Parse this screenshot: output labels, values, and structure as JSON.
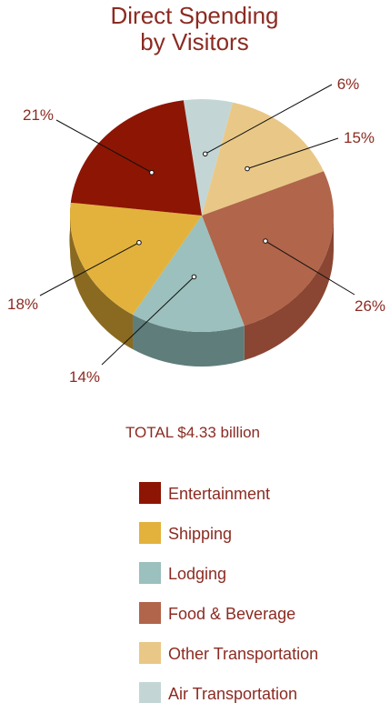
{
  "chart_data": {
    "type": "pie",
    "title_lines": [
      "Direct Spending",
      "by Visitors"
    ],
    "total_label": "TOTAL $4.33 billion",
    "slices": [
      {
        "name": "Air Transportation",
        "value": 6,
        "label": "6%",
        "color": "#c3d6d5",
        "side_color": "#8fa3a2"
      },
      {
        "name": "Other Transportation",
        "value": 15,
        "label": "15%",
        "color": "#e9c887",
        "side_color": "#b09560"
      },
      {
        "name": "Food & Beverage",
        "value": 26,
        "label": "26%",
        "color": "#b1654a",
        "side_color": "#8a4632"
      },
      {
        "name": "Lodging",
        "value": 14,
        "label": "14%",
        "color": "#9bc0bd",
        "side_color": "#5f7d7a"
      },
      {
        "name": "Shipping",
        "value": 18,
        "label": "18%",
        "color": "#e3b23c",
        "side_color": "#8a6a20"
      },
      {
        "name": "Entertainment",
        "value": 21,
        "label": "21%",
        "color": "#8d1503",
        "side_color": "#6a1002"
      }
    ],
    "legend": [
      "Entertainment",
      "Shipping",
      "Lodging",
      "Food & Beverage",
      "Other Transportation",
      "Air Transportation"
    ],
    "legend_placement": "bottom"
  }
}
